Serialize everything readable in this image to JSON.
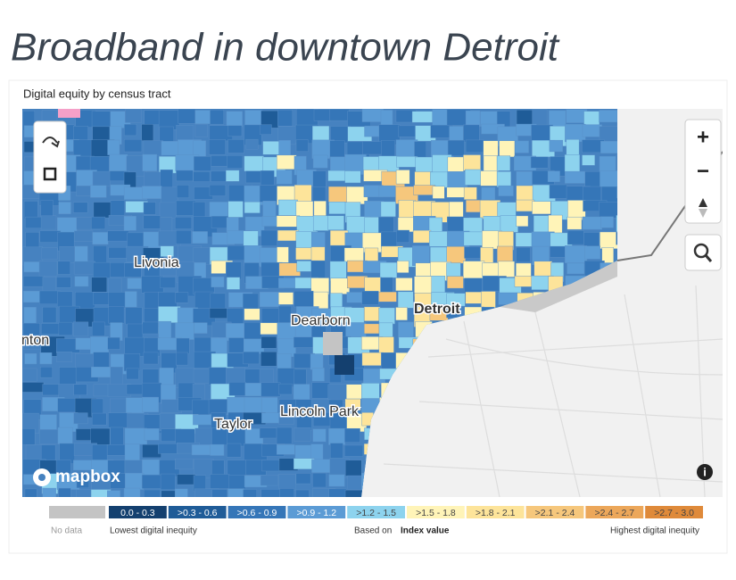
{
  "header": {
    "title": "Broadband in downtown Detroit"
  },
  "map": {
    "title": "Digital equity by census tract",
    "places": [
      {
        "label": "Livonia"
      },
      {
        "label": "Dearborn"
      },
      {
        "label": "Detroit"
      },
      {
        "label": "nton"
      },
      {
        "label": "Taylor"
      },
      {
        "label": "Lincoln Park"
      }
    ],
    "attribution": "mapbox",
    "controls": {
      "zoom_in": "+",
      "zoom_out": "−",
      "info": "i"
    }
  },
  "legend": {
    "no_data": {
      "label": "No data",
      "color": "#c4c4c4"
    },
    "bins": [
      {
        "label": "0.0 - 0.3",
        "color": "#14406f"
      },
      {
        "label": ">0.3 - 0.6",
        "color": "#1f5c98"
      },
      {
        "label": ">0.6 - 0.9",
        "color": "#3576b8"
      },
      {
        "label": ">0.9 - 1.2",
        "color": "#5b9bd5"
      },
      {
        "label": ">1.2 - 1.5",
        "color": "#8dd3ee"
      },
      {
        "label": ">1.5 - 1.8",
        "color": "#fff4b8"
      },
      {
        "label": ">1.8 - 2.1",
        "color": "#fde49a"
      },
      {
        "label": ">2.1 - 2.4",
        "color": "#f6c77c"
      },
      {
        "label": ">2.4 - 2.7",
        "color": "#eca75a"
      },
      {
        "label": ">2.7 - 3.0",
        "color": "#df8a3a"
      }
    ],
    "low_caption": "Lowest digital inequity",
    "based_on": "Based on",
    "index_label": "Index value",
    "high_caption": "Highest digital inequity"
  }
}
